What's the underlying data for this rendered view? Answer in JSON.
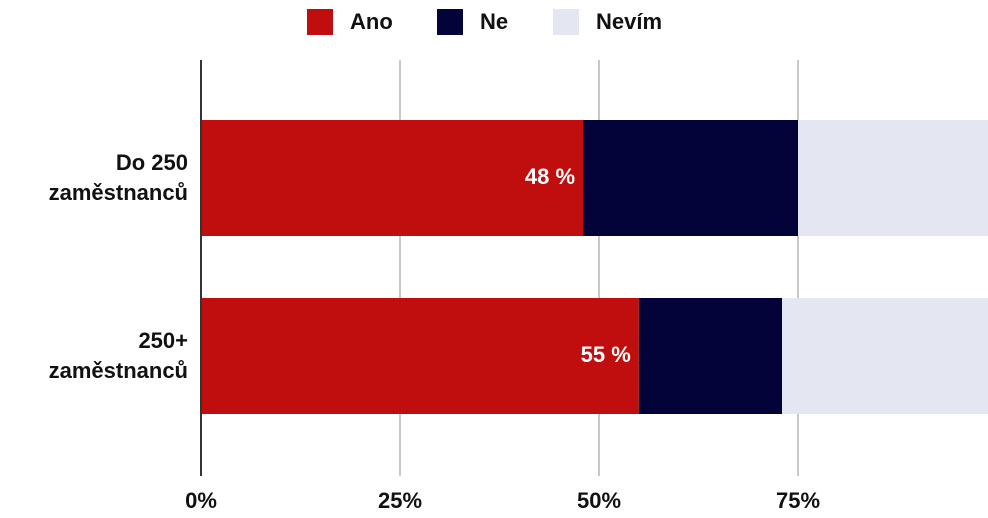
{
  "chart_data": {
    "type": "stacked-bar-horizontal",
    "categories": [
      "Do 250\nzaměstnanců",
      "250+\nzaměstnanců"
    ],
    "series": [
      {
        "name": "Ano",
        "color": "#c00d0d",
        "values": [
          48,
          55
        ],
        "value_labels": [
          "48 %",
          "55 %"
        ]
      },
      {
        "name": "Ne",
        "color": "#03033a",
        "values": [
          27,
          18
        ]
      },
      {
        "name": "Nevím",
        "color": "#e4e6f1",
        "values": [
          25,
          27
        ]
      }
    ],
    "xlim": [
      0,
      100
    ],
    "xticks": [
      {
        "value": 0,
        "label": "0%"
      },
      {
        "value": 25,
        "label": "25%"
      },
      {
        "value": 50,
        "label": "50%"
      },
      {
        "value": 75,
        "label": "75%"
      }
    ],
    "grid": true,
    "legend": "top"
  }
}
